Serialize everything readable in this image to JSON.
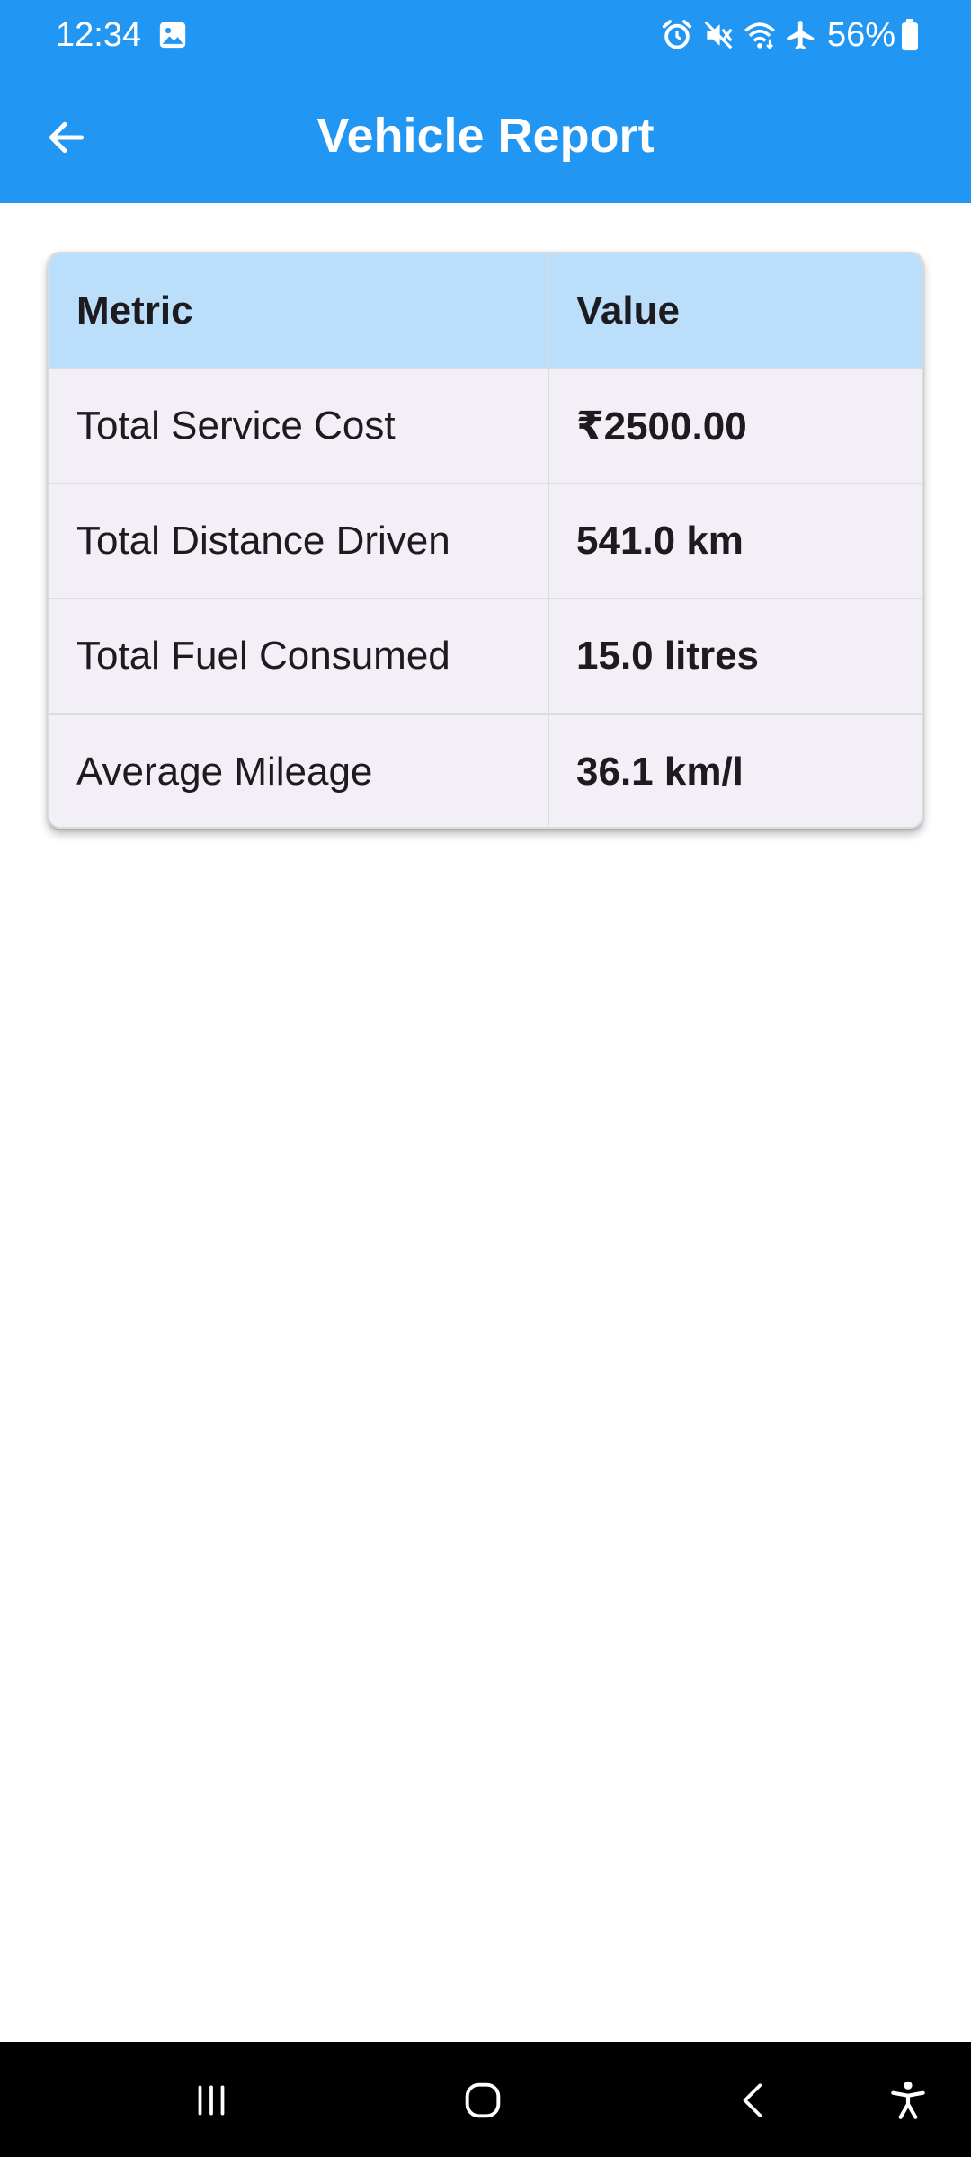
{
  "status_bar": {
    "time": "12:34",
    "battery": "56%",
    "icons": [
      "gallery-icon",
      "alarm-icon",
      "mute-icon",
      "wifi-icon",
      "airplane-icon",
      "battery-icon"
    ]
  },
  "app_bar": {
    "title": "Vehicle Report",
    "back_icon": "arrow-left-icon"
  },
  "report_table": {
    "headers": [
      "Metric",
      "Value"
    ],
    "rows": [
      {
        "metric": "Total Service Cost",
        "value": "₹2500.00"
      },
      {
        "metric": "Total Distance Driven",
        "value": "541.0 km"
      },
      {
        "metric": "Total Fuel Consumed",
        "value": "15.0 litres"
      },
      {
        "metric": "Average Mileage",
        "value": "36.1 km/l"
      }
    ]
  },
  "nav_bar": {
    "icons": [
      "recent-apps-icon",
      "home-icon",
      "back-icon",
      "accessibility-icon"
    ]
  },
  "colors": {
    "primary": "#2196F3",
    "header_row": "#BBDEFB",
    "card_background": "#F3EFF7",
    "nav_background": "#000000"
  }
}
